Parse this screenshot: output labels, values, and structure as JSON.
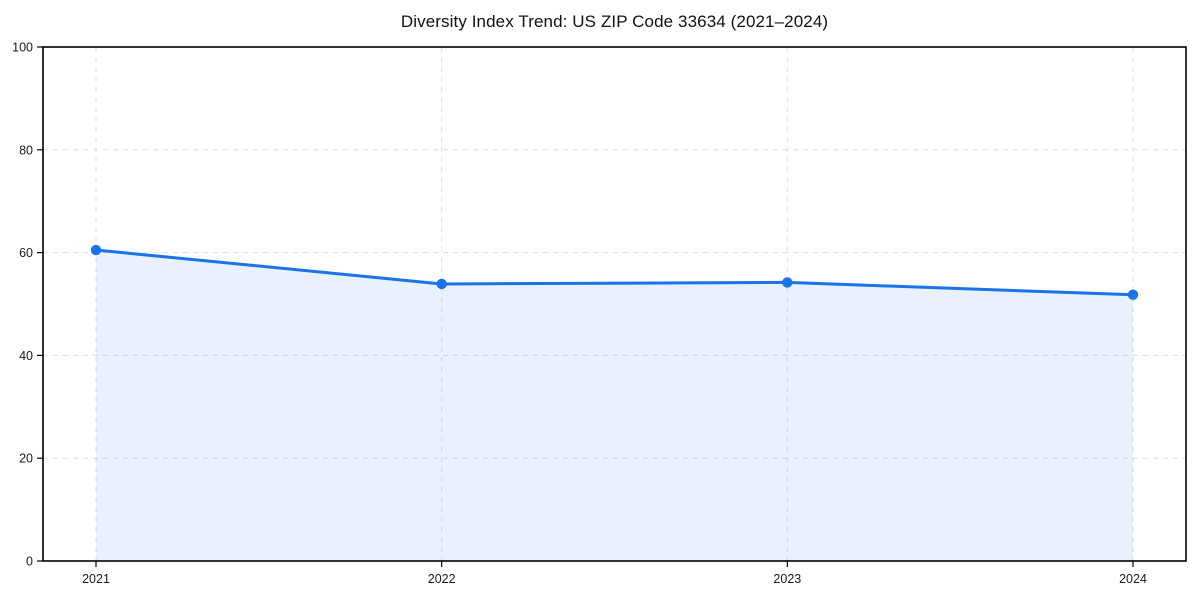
{
  "chart_data": {
    "type": "line",
    "title": "Diversity Index Trend: US ZIP Code 33634 (2021–2024)",
    "x": [
      2021,
      2022,
      2023,
      2024
    ],
    "xtick_labels": [
      "2021",
      "2022",
      "2023",
      "2024"
    ],
    "series": [
      {
        "name": "Diversity Index",
        "values": [
          60.5,
          53.9,
          54.2,
          51.8
        ]
      }
    ],
    "xlabel": "",
    "ylabel": "",
    "ylim": [
      0,
      100
    ],
    "yticks": [
      0,
      20,
      40,
      60,
      80,
      100
    ],
    "grid": "dashed, horizontal and vertical",
    "legend": "none",
    "area_fill": true,
    "marker": "circle",
    "colors": {
      "line": "#1a73e8",
      "marker": "#1a73e8",
      "area": "rgba(26,115,232,0.10)",
      "area_hex_on_white": "#e8f1fd",
      "grid": "#dedede",
      "axis": "#000000",
      "tick_label": "#1a1a1a",
      "title": "#111111",
      "background": "#ffffff"
    }
  }
}
